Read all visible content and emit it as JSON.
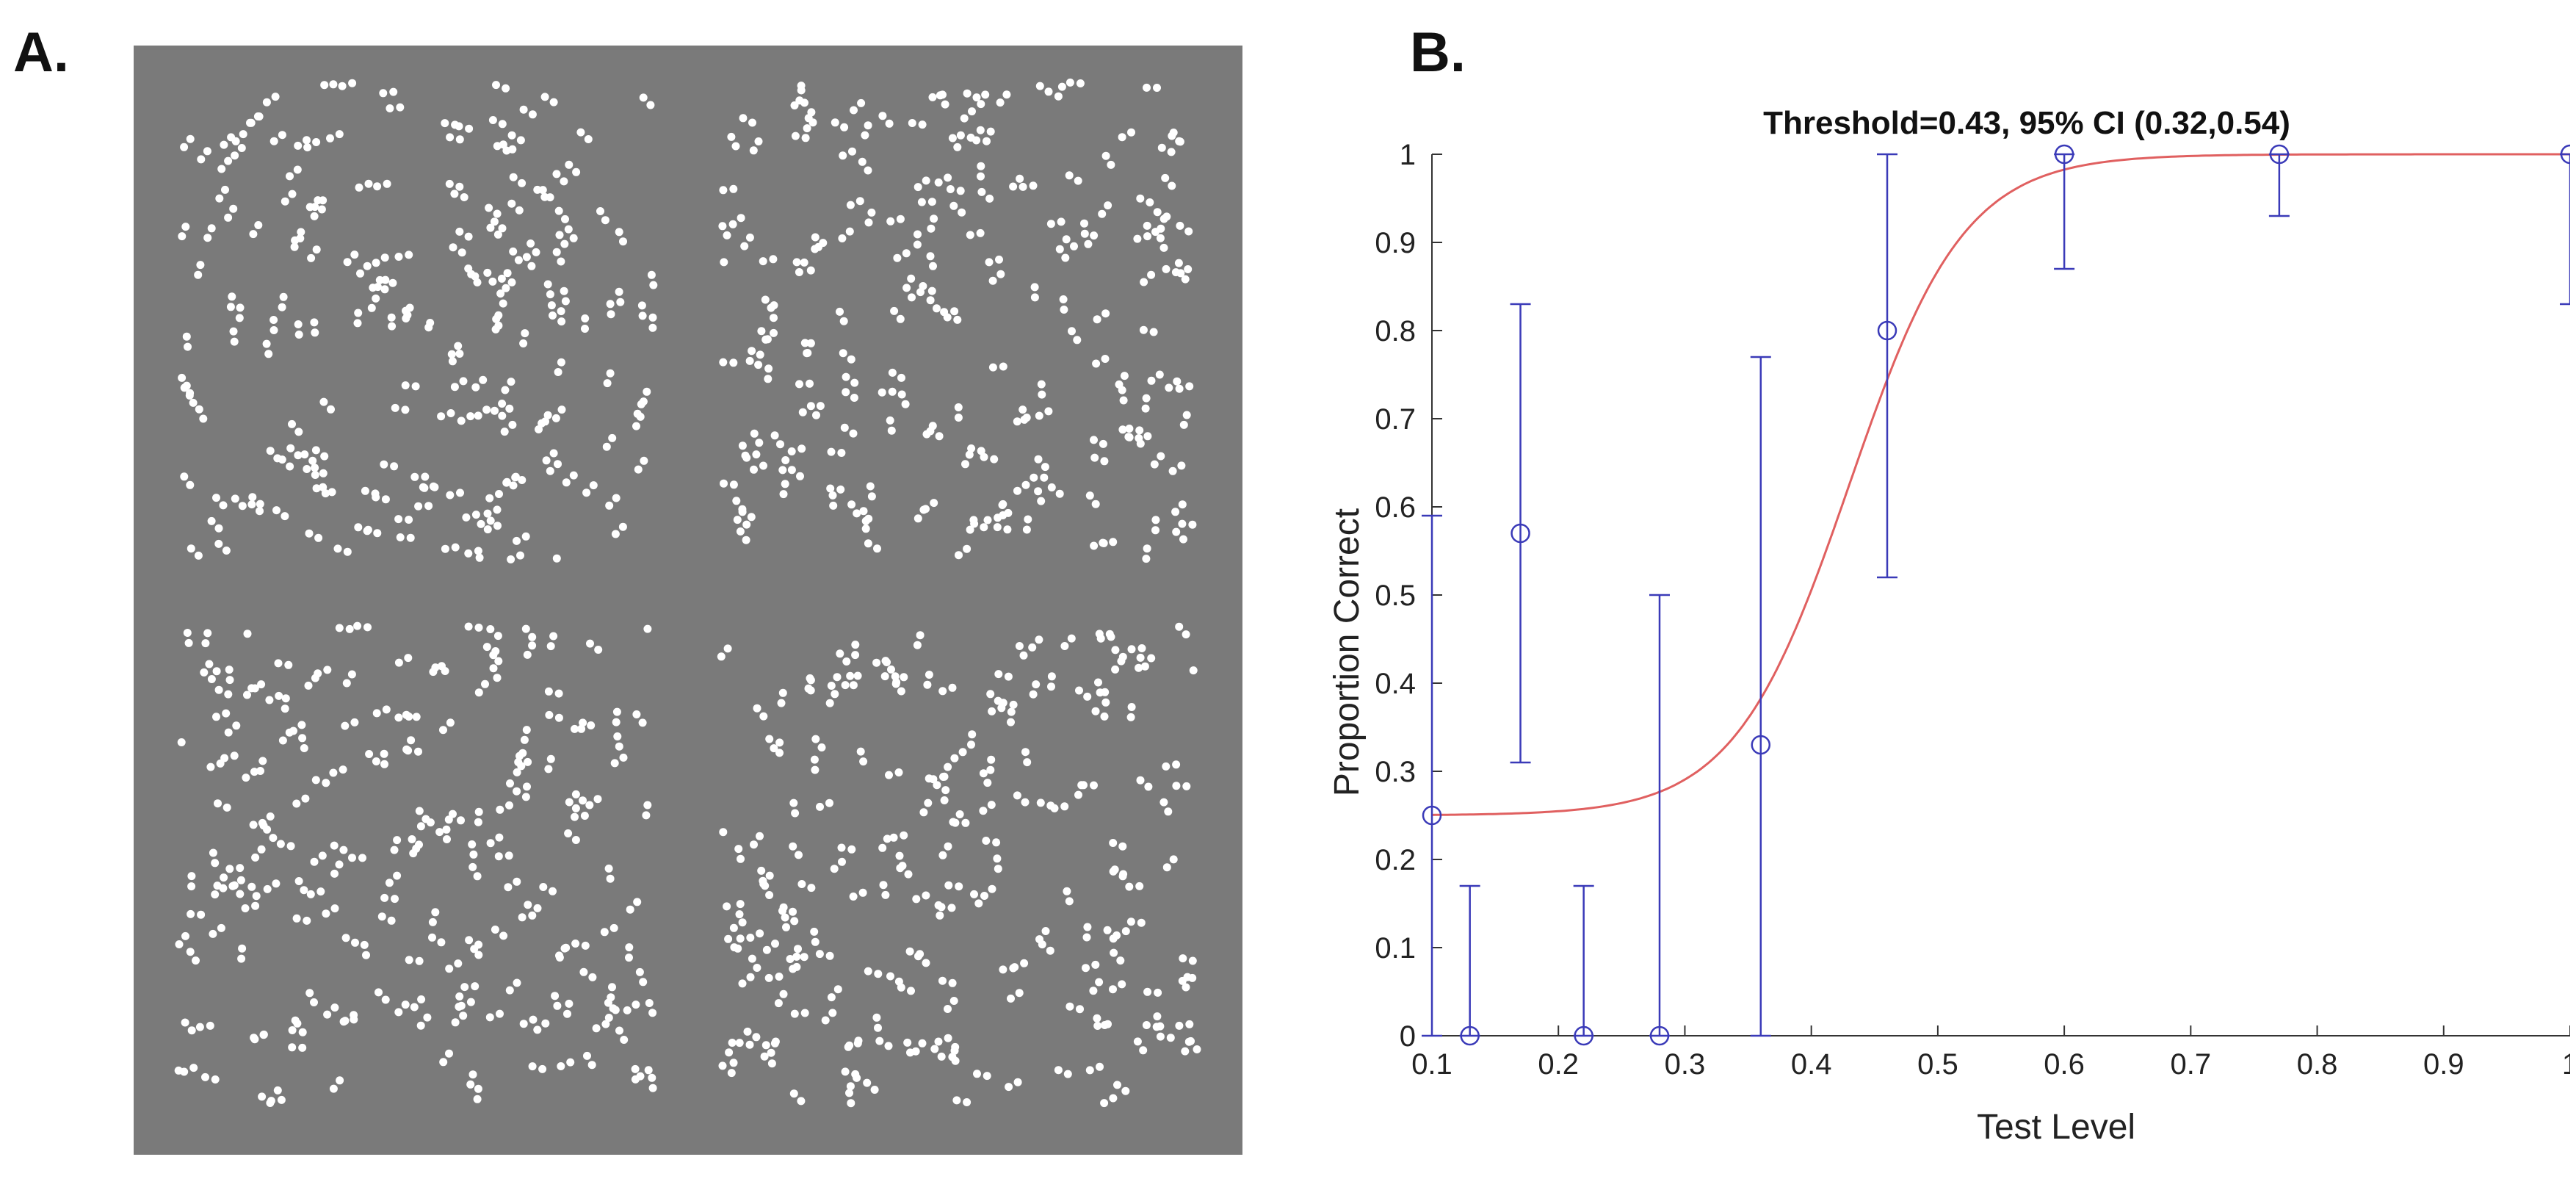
{
  "panels": {
    "a_label": "A.",
    "b_label": "B."
  },
  "stimulus": {
    "description_label": "Glass pattern dot stimuli (4 quadrants)",
    "background_color": "#7a7a7a",
    "dot_color": "#ffffff",
    "quadrants": [
      {
        "pattern": "concentric"
      },
      {
        "pattern": "random"
      },
      {
        "pattern": "random"
      },
      {
        "pattern": "random"
      }
    ]
  },
  "chart_data": {
    "type": "scatter",
    "title": "Threshold=0.43, 95% CI (0.32,0.54)",
    "xlabel": "Test Level",
    "ylabel": "Proportion Correct",
    "xlim": [
      0.1,
      1
    ],
    "ylim": [
      0,
      1
    ],
    "xticks": [
      "0.1",
      "0.2",
      "0.3",
      "0.4",
      "0.5",
      "0.6",
      "0.7",
      "0.8",
      "0.9",
      "1"
    ],
    "yticks": [
      "0",
      "0.1",
      "0.2",
      "0.3",
      "0.4",
      "0.5",
      "0.6",
      "0.7",
      "0.8",
      "0.9",
      "1"
    ],
    "marker_color": "#3a3ab8",
    "curve_color": "#e06060",
    "points": [
      {
        "x": 0.1,
        "y": 0.25,
        "lo": 0.0,
        "hi": 0.59
      },
      {
        "x": 0.13,
        "y": 0.0,
        "lo": 0.0,
        "hi": 0.17
      },
      {
        "x": 0.17,
        "y": 0.57,
        "lo": 0.31,
        "hi": 0.83
      },
      {
        "x": 0.22,
        "y": 0.0,
        "lo": 0.0,
        "hi": 0.17
      },
      {
        "x": 0.28,
        "y": 0.0,
        "lo": 0.0,
        "hi": 0.5
      },
      {
        "x": 0.36,
        "y": 0.33,
        "lo": 0.0,
        "hi": 0.77
      },
      {
        "x": 0.46,
        "y": 0.8,
        "lo": 0.52,
        "hi": 1.0
      },
      {
        "x": 0.6,
        "y": 1.0,
        "lo": 0.87,
        "hi": 1.0
      },
      {
        "x": 0.77,
        "y": 1.0,
        "lo": 0.93,
        "hi": 1.0
      },
      {
        "x": 1.0,
        "y": 1.0,
        "lo": 0.83,
        "hi": 1.0
      }
    ],
    "fit": {
      "guess": 0.25,
      "lapse": 0.0,
      "threshold": 0.43,
      "slope": 22
    }
  }
}
